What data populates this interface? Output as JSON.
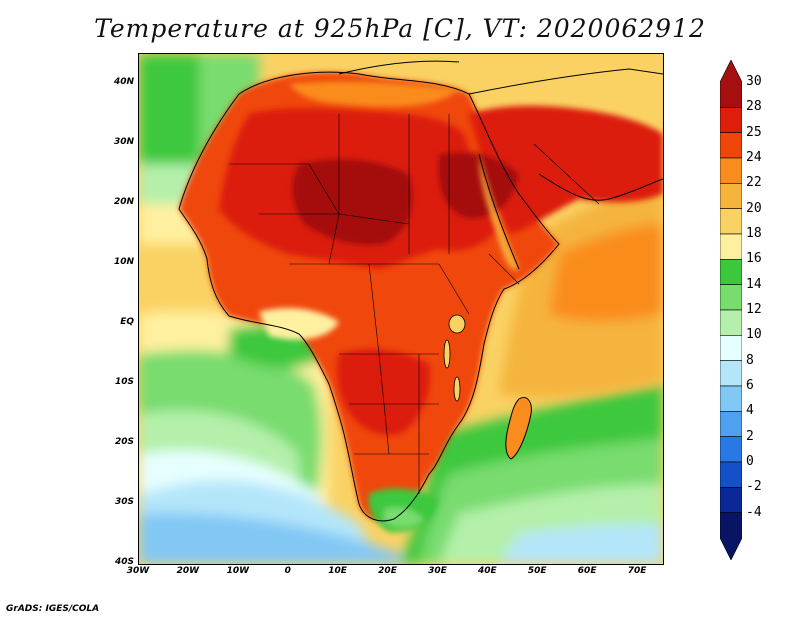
{
  "title": "Temperature at 925hPa [C], VT: 2020062912",
  "footer": "GrADS: IGES/COLA",
  "map": {
    "lon_range": [
      -30,
      75
    ],
    "lat_range": [
      -40,
      45
    ],
    "lon_labels": [
      "30W",
      "20W",
      "10W",
      "0",
      "10E",
      "20E",
      "30E",
      "40E",
      "50E",
      "60E",
      "70E"
    ],
    "lon_values": [
      -30,
      -20,
      -10,
      0,
      10,
      20,
      30,
      40,
      50,
      60,
      70
    ],
    "lat_labels": [
      "40S",
      "30S",
      "20S",
      "10S",
      "EQ",
      "10N",
      "20N",
      "30N",
      "40N"
    ],
    "lat_values": [
      -40,
      -30,
      -20,
      -10,
      0,
      10,
      20,
      30,
      40
    ]
  },
  "colorbar": {
    "labels": [
      "30",
      "28",
      "25",
      "24",
      "22",
      "20",
      "18",
      "16",
      "14",
      "12",
      "10",
      "8",
      "6",
      "4",
      "2",
      "0",
      "-2",
      "-4"
    ],
    "colors": [
      "#a50f0f",
      "#dc1e0a",
      "#f0460a",
      "#fa8c1e",
      "#f5b43c",
      "#fad264",
      "#fff0a0",
      "#3cc83c",
      "#78dc6e",
      "#b4f0aa",
      "#e6ffff",
      "#b4e6fa",
      "#82c8f5",
      "#50a0f0",
      "#2878e6",
      "#1450c8",
      "#0a2896",
      "#0a1464"
    ]
  }
}
